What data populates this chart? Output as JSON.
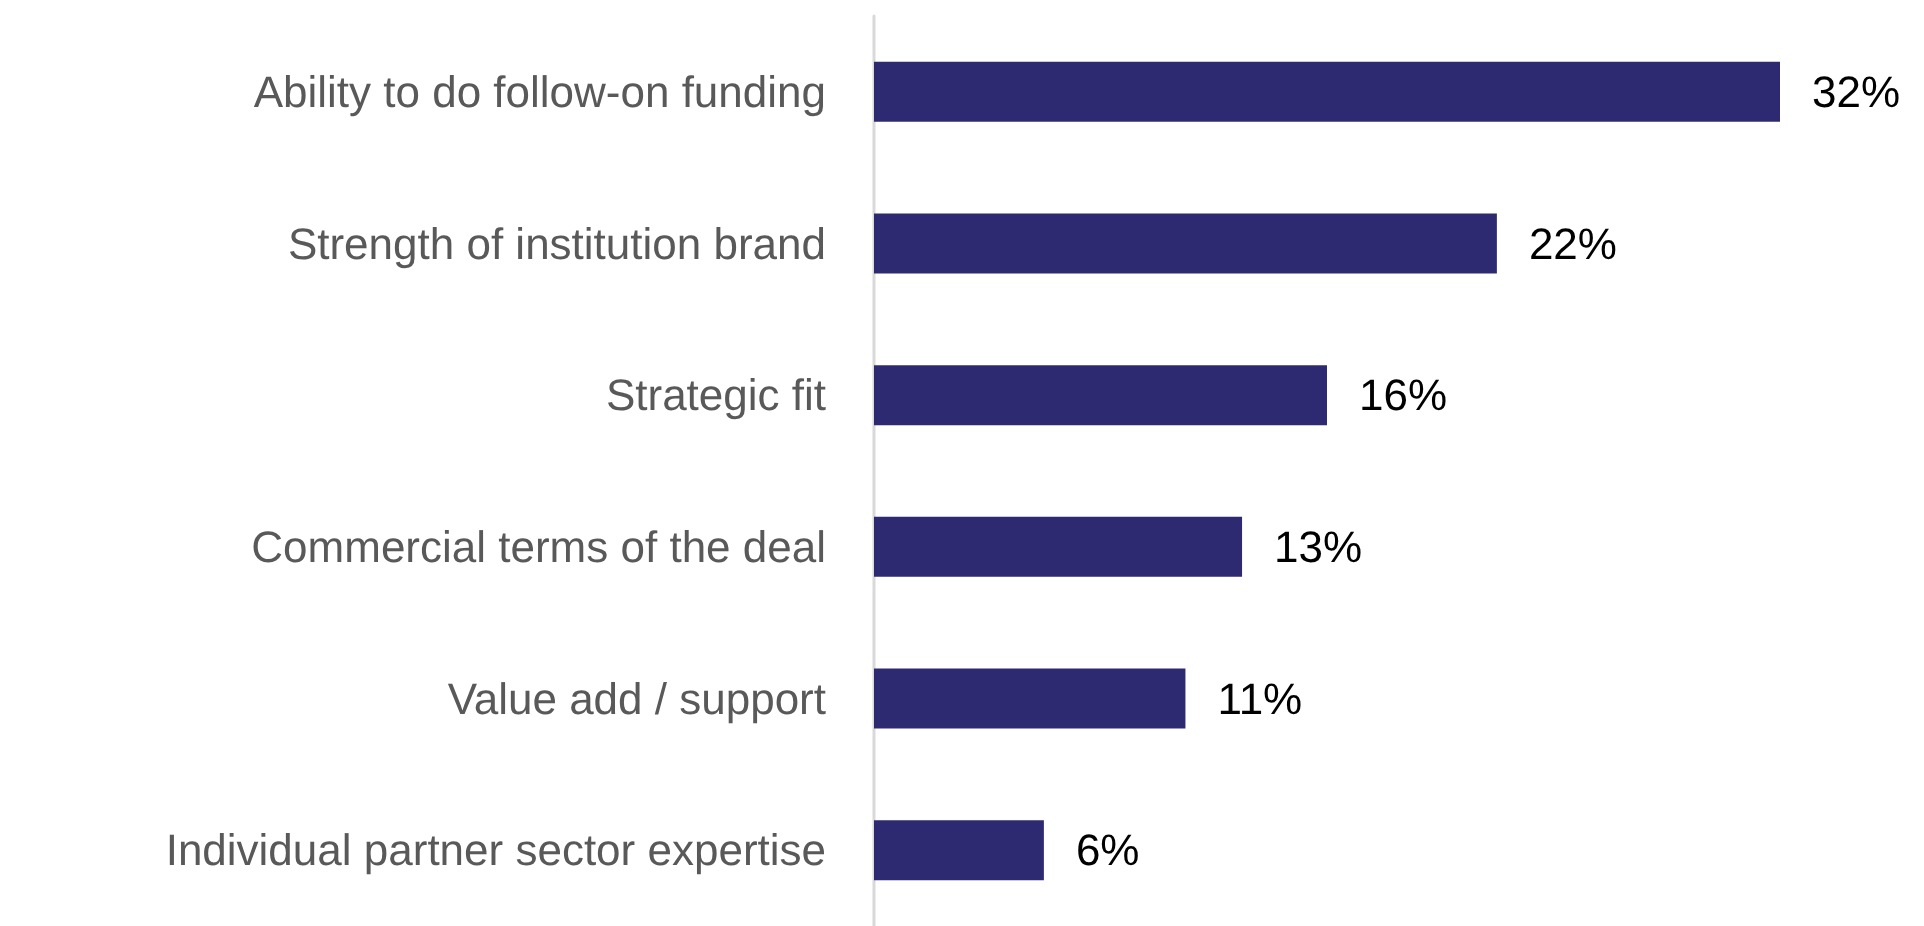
{
  "chart_data": {
    "type": "bar",
    "orientation": "horizontal",
    "categories": [
      "Ability to do follow-on funding",
      "Strength of institution brand",
      "Strategic fit",
      "Commercial terms of the deal",
      "Value add / support",
      "Individual partner sector expertise"
    ],
    "values": [
      32,
      22,
      16,
      13,
      11,
      6
    ],
    "value_labels": [
      "32%",
      "22%",
      "16%",
      "13%",
      "11%",
      "6%"
    ],
    "color": "#2e2a72",
    "grid": false
  }
}
